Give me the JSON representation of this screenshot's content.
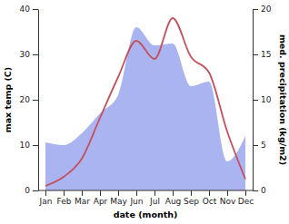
{
  "chart_data": {
    "type": "line",
    "x_label": "date (month)",
    "y_label": "max temp (C)",
    "y2_label": "med. precipitation (kg/m2)",
    "categories": [
      "Jan",
      "Feb",
      "Mar",
      "Apr",
      "May",
      "Jun",
      "Jul",
      "Aug",
      "Sep",
      "Oct",
      "Nov",
      "Dec"
    ],
    "series": [
      {
        "type": "area",
        "axis": "y2",
        "color": "#aab4f0",
        "values": [
          5.3,
          5,
          6.3,
          8.5,
          10.5,
          18,
          16,
          16.2,
          11.5,
          12,
          3.2,
          6
        ]
      },
      {
        "type": "line",
        "color": "#c64f5c",
        "values": [
          1,
          3,
          7,
          16,
          25,
          33,
          29,
          38,
          29.5,
          26,
          13,
          2.5
        ]
      }
    ],
    "ylim": [
      0,
      40
    ],
    "yticks": [
      0,
      10,
      20,
      30,
      40
    ],
    "y2lim": [
      0,
      20
    ],
    "y2ticks": [
      0,
      5,
      10,
      15,
      20
    ]
  }
}
